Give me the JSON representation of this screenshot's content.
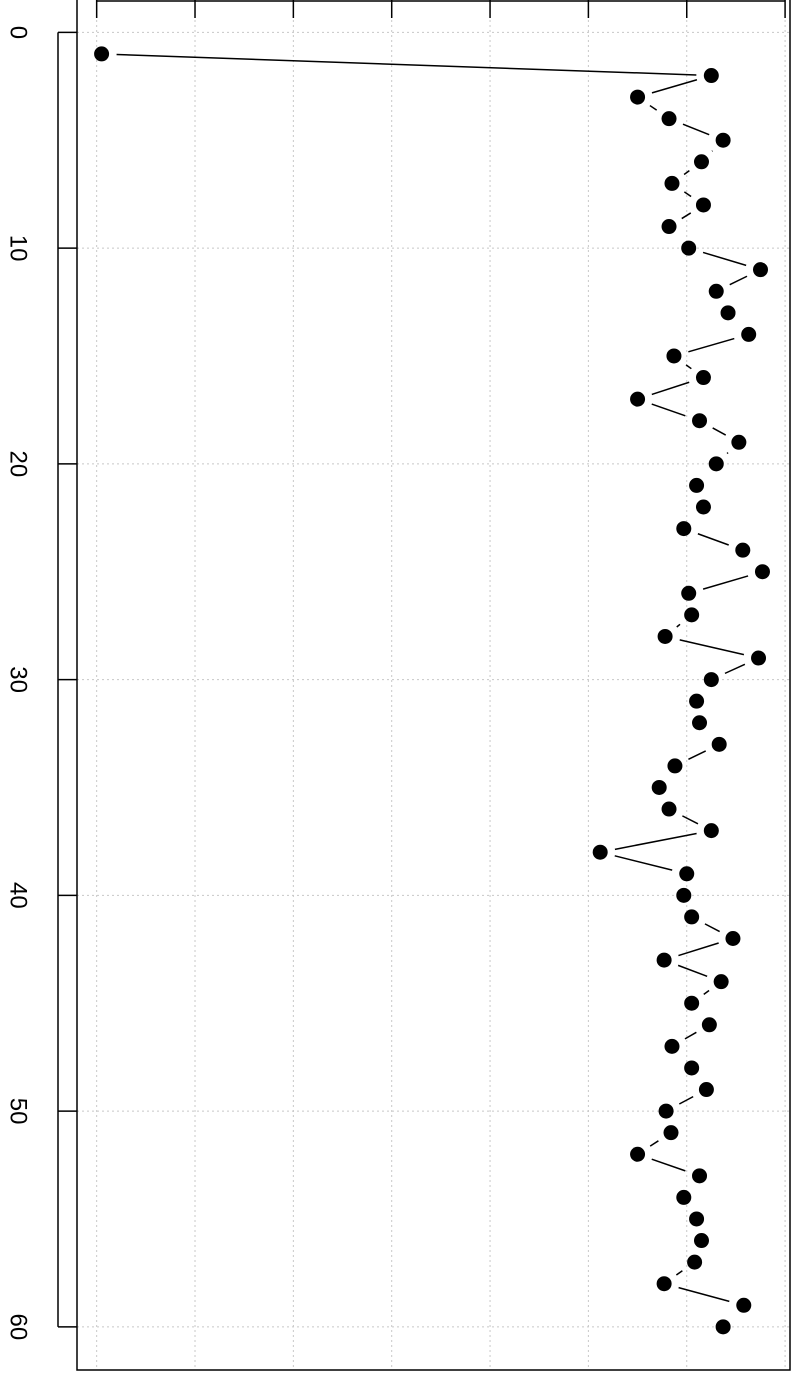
{
  "chart_data": {
    "type": "line",
    "orientation": "rotated",
    "markers": true,
    "grid": true,
    "x": [
      1,
      2,
      3,
      4,
      5,
      6,
      7,
      8,
      9,
      10,
      11,
      12,
      13,
      14,
      15,
      16,
      17,
      18,
      19,
      20,
      21,
      22,
      23,
      24,
      25,
      26,
      27,
      28,
      29,
      30,
      31,
      32,
      33,
      34,
      35,
      36,
      37,
      38,
      39,
      40,
      41,
      42,
      43,
      44,
      45,
      46,
      47,
      48,
      49,
      50,
      51,
      52,
      53,
      54,
      55,
      56,
      57,
      58,
      59,
      60
    ],
    "x_ticks": [
      0,
      10,
      20,
      30,
      40,
      50,
      60
    ],
    "x_tick_labels": [
      "0",
      "10",
      "20",
      "30",
      "40",
      "50",
      "60"
    ],
    "xlim": [
      -1.5,
      62
    ],
    "y_ticks": [
      0,
      1,
      2,
      3,
      4,
      5,
      6,
      7
    ],
    "ylim": [
      -0.2,
      7.05
    ],
    "series": [
      {
        "values": [
          0.05,
          6.25,
          5.5,
          5.82,
          6.37,
          6.15,
          5.85,
          6.17,
          5.82,
          6.02,
          6.75,
          6.3,
          6.42,
          6.63,
          5.87,
          6.17,
          5.5,
          6.13,
          6.53,
          6.3,
          6.1,
          6.17,
          5.97,
          6.57,
          6.77,
          6.02,
          6.05,
          5.78,
          6.73,
          6.25,
          6.1,
          6.13,
          6.33,
          5.88,
          5.72,
          5.82,
          6.25,
          5.12,
          6.0,
          5.97,
          6.05,
          6.47,
          5.77,
          6.35,
          6.05,
          6.23,
          5.85,
          6.05,
          6.2,
          5.79,
          5.84,
          5.5,
          6.13,
          5.97,
          6.1,
          6.15,
          6.08,
          5.77,
          6.58,
          6.37
        ]
      }
    ],
    "colors": {
      "line": "#000000",
      "marker": "#000000",
      "grid": "#c8c8c8",
      "axis": "#000000"
    }
  }
}
